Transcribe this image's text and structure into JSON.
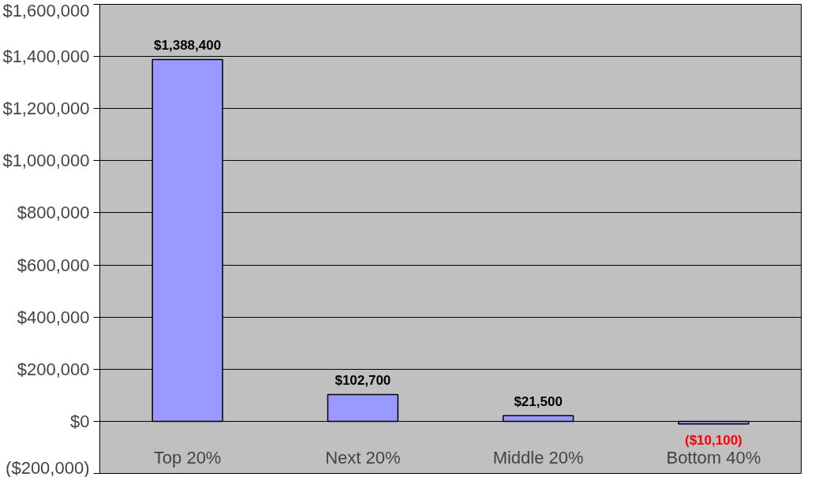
{
  "chart_data": {
    "type": "bar",
    "categories": [
      "Top 20%",
      "Next 20%",
      "Middle 20%",
      "Bottom 40%"
    ],
    "values": [
      1388400,
      102700,
      21500,
      -10100
    ],
    "value_labels": [
      "$1,388,400",
      "$102,700",
      "$21,500",
      "($10,100)"
    ],
    "color": "#9999ff",
    "ylim": [
      -200000,
      1600000
    ],
    "yticks": [
      {
        "value": -200000,
        "label": "($200,000)"
      },
      {
        "value": 0,
        "label": "$0"
      },
      {
        "value": 200000,
        "label": "$200,000"
      },
      {
        "value": 400000,
        "label": "$400,000"
      },
      {
        "value": 600000,
        "label": "$600,000"
      },
      {
        "value": 800000,
        "label": "$800,000"
      },
      {
        "value": 1000000,
        "label": "$1,000,000"
      },
      {
        "value": 1200000,
        "label": "$1,200,000"
      },
      {
        "value": 1400000,
        "label": "$1,400,000"
      },
      {
        "value": 1600000,
        "label": "$1,600,000"
      }
    ],
    "grid": "y"
  }
}
